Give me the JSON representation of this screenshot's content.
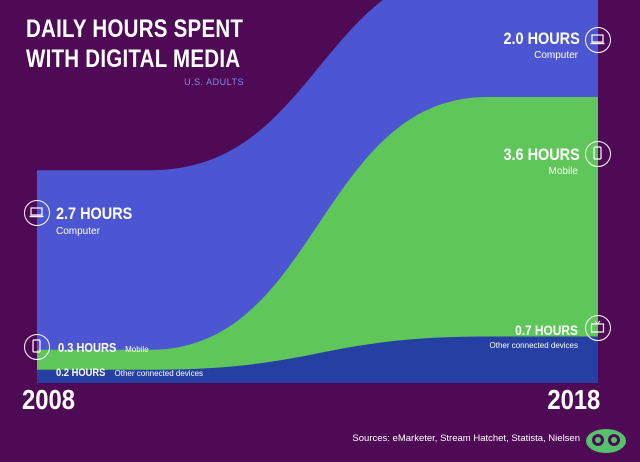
{
  "title_line1": "DAILY HOURS SPENT",
  "title_line2": "WITH DIGITAL MEDIA",
  "subtitle": "U.S. ADULTS",
  "years": {
    "start": "2008",
    "end": "2018"
  },
  "source": "Sources: eMarketer, Stream Hatchet, Statista, Nielsen",
  "labels": {
    "computer_2008": {
      "value": "2.7 HOURS",
      "name": "Computer"
    },
    "mobile_2008": {
      "value": "0.3 HOURS",
      "name": "Mobile"
    },
    "other_2008": {
      "value": "0.2 HOURS",
      "name": "Other connected devices"
    },
    "computer_2018": {
      "value": "2.0 HOURS",
      "name": "Computer"
    },
    "mobile_2018": {
      "value": "3.6 HOURS",
      "name": "Mobile"
    },
    "other_2018": {
      "value": "0.7 HOURS",
      "name": "Other connected devices"
    }
  },
  "colors": {
    "background": "#4f0a55",
    "computer": "#4c56d2",
    "mobile": "#5fc75a",
    "other": "#253fa3"
  },
  "icons": [
    "laptop-icon",
    "smartphone-icon",
    "tv-icon",
    "logo-icon"
  ],
  "chart_data": {
    "type": "area",
    "x": [
      2008,
      2018
    ],
    "series": [
      {
        "name": "Other connected devices",
        "values": [
          0.2,
          0.7
        ]
      },
      {
        "name": "Mobile",
        "values": [
          0.3,
          3.6
        ]
      },
      {
        "name": "Computer",
        "values": [
          2.7,
          2.0
        ]
      }
    ],
    "title": "DAILY HOURS SPENT WITH DIGITAL MEDIA",
    "subtitle": "U.S. ADULTS",
    "stacked": true,
    "unit": "HOURS"
  }
}
